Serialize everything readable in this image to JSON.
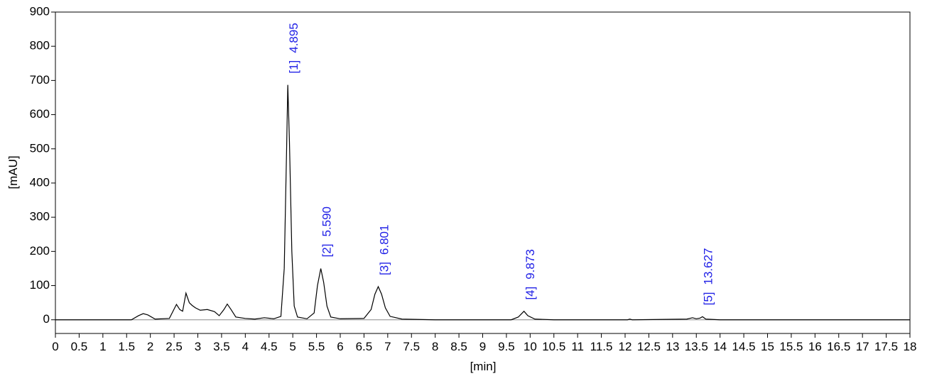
{
  "chart_data": {
    "type": "line",
    "x_label": "[min]",
    "y_label": "[mAU]",
    "xlim": [
      0,
      18
    ],
    "ylim": [
      -40,
      900
    ],
    "xticks": [
      0,
      0.5,
      1,
      1.5,
      2,
      2.5,
      3,
      3.5,
      4,
      4.5,
      5,
      5.5,
      6,
      6.5,
      7,
      7.5,
      8,
      8.5,
      9,
      9.5,
      10,
      10.5,
      11,
      11.5,
      12,
      12.5,
      13,
      13.5,
      14,
      14.5,
      15,
      15.5,
      16,
      16.5,
      17,
      17.5,
      18
    ],
    "yticks": [
      0,
      100,
      200,
      300,
      400,
      500,
      600,
      700,
      800,
      900
    ],
    "color": "#000000",
    "x": [
      0,
      1.6,
      1.75,
      1.85,
      1.95,
      2.1,
      2.4,
      2.55,
      2.62,
      2.68,
      2.75,
      2.82,
      2.88,
      2.95,
      3.05,
      3.2,
      3.35,
      3.45,
      3.55,
      3.62,
      3.7,
      3.8,
      4.0,
      4.2,
      4.4,
      4.6,
      4.75,
      4.82,
      4.87,
      4.895,
      4.93,
      4.98,
      5.03,
      5.1,
      5.3,
      5.45,
      5.52,
      5.59,
      5.65,
      5.72,
      5.8,
      6.0,
      6.5,
      6.65,
      6.73,
      6.8,
      6.87,
      6.95,
      7.05,
      7.3,
      8,
      9.6,
      9.75,
      9.87,
      9.95,
      10.1,
      10.5,
      12.05,
      12.1,
      12.15,
      13.3,
      13.42,
      13.5,
      13.58,
      13.63,
      13.7,
      14,
      18
    ],
    "values": [
      0,
      0,
      12,
      18,
      14,
      2,
      4,
      45,
      30,
      25,
      78,
      50,
      42,
      35,
      28,
      30,
      24,
      12,
      30,
      46,
      30,
      8,
      4,
      2,
      6,
      3,
      10,
      150,
      500,
      687,
      520,
      200,
      40,
      8,
      3,
      20,
      100,
      150,
      110,
      40,
      8,
      3,
      4,
      30,
      75,
      97,
      75,
      35,
      10,
      2,
      0,
      0,
      8,
      25,
      12,
      2,
      0,
      0,
      2,
      0,
      2,
      6,
      3,
      5,
      9,
      2,
      0,
      0
    ],
    "peaks": {
      "color": "#1f1fe6",
      "labels": [
        "[1]",
        "[2]",
        "[3]",
        "[4]",
        "[5]"
      ],
      "values": [
        4.895,
        5.59,
        6.801,
        9.873,
        13.627
      ],
      "value_labels": [
        "4.895",
        "5.590",
        "6.801",
        "9.873",
        "13.627"
      ]
    }
  }
}
